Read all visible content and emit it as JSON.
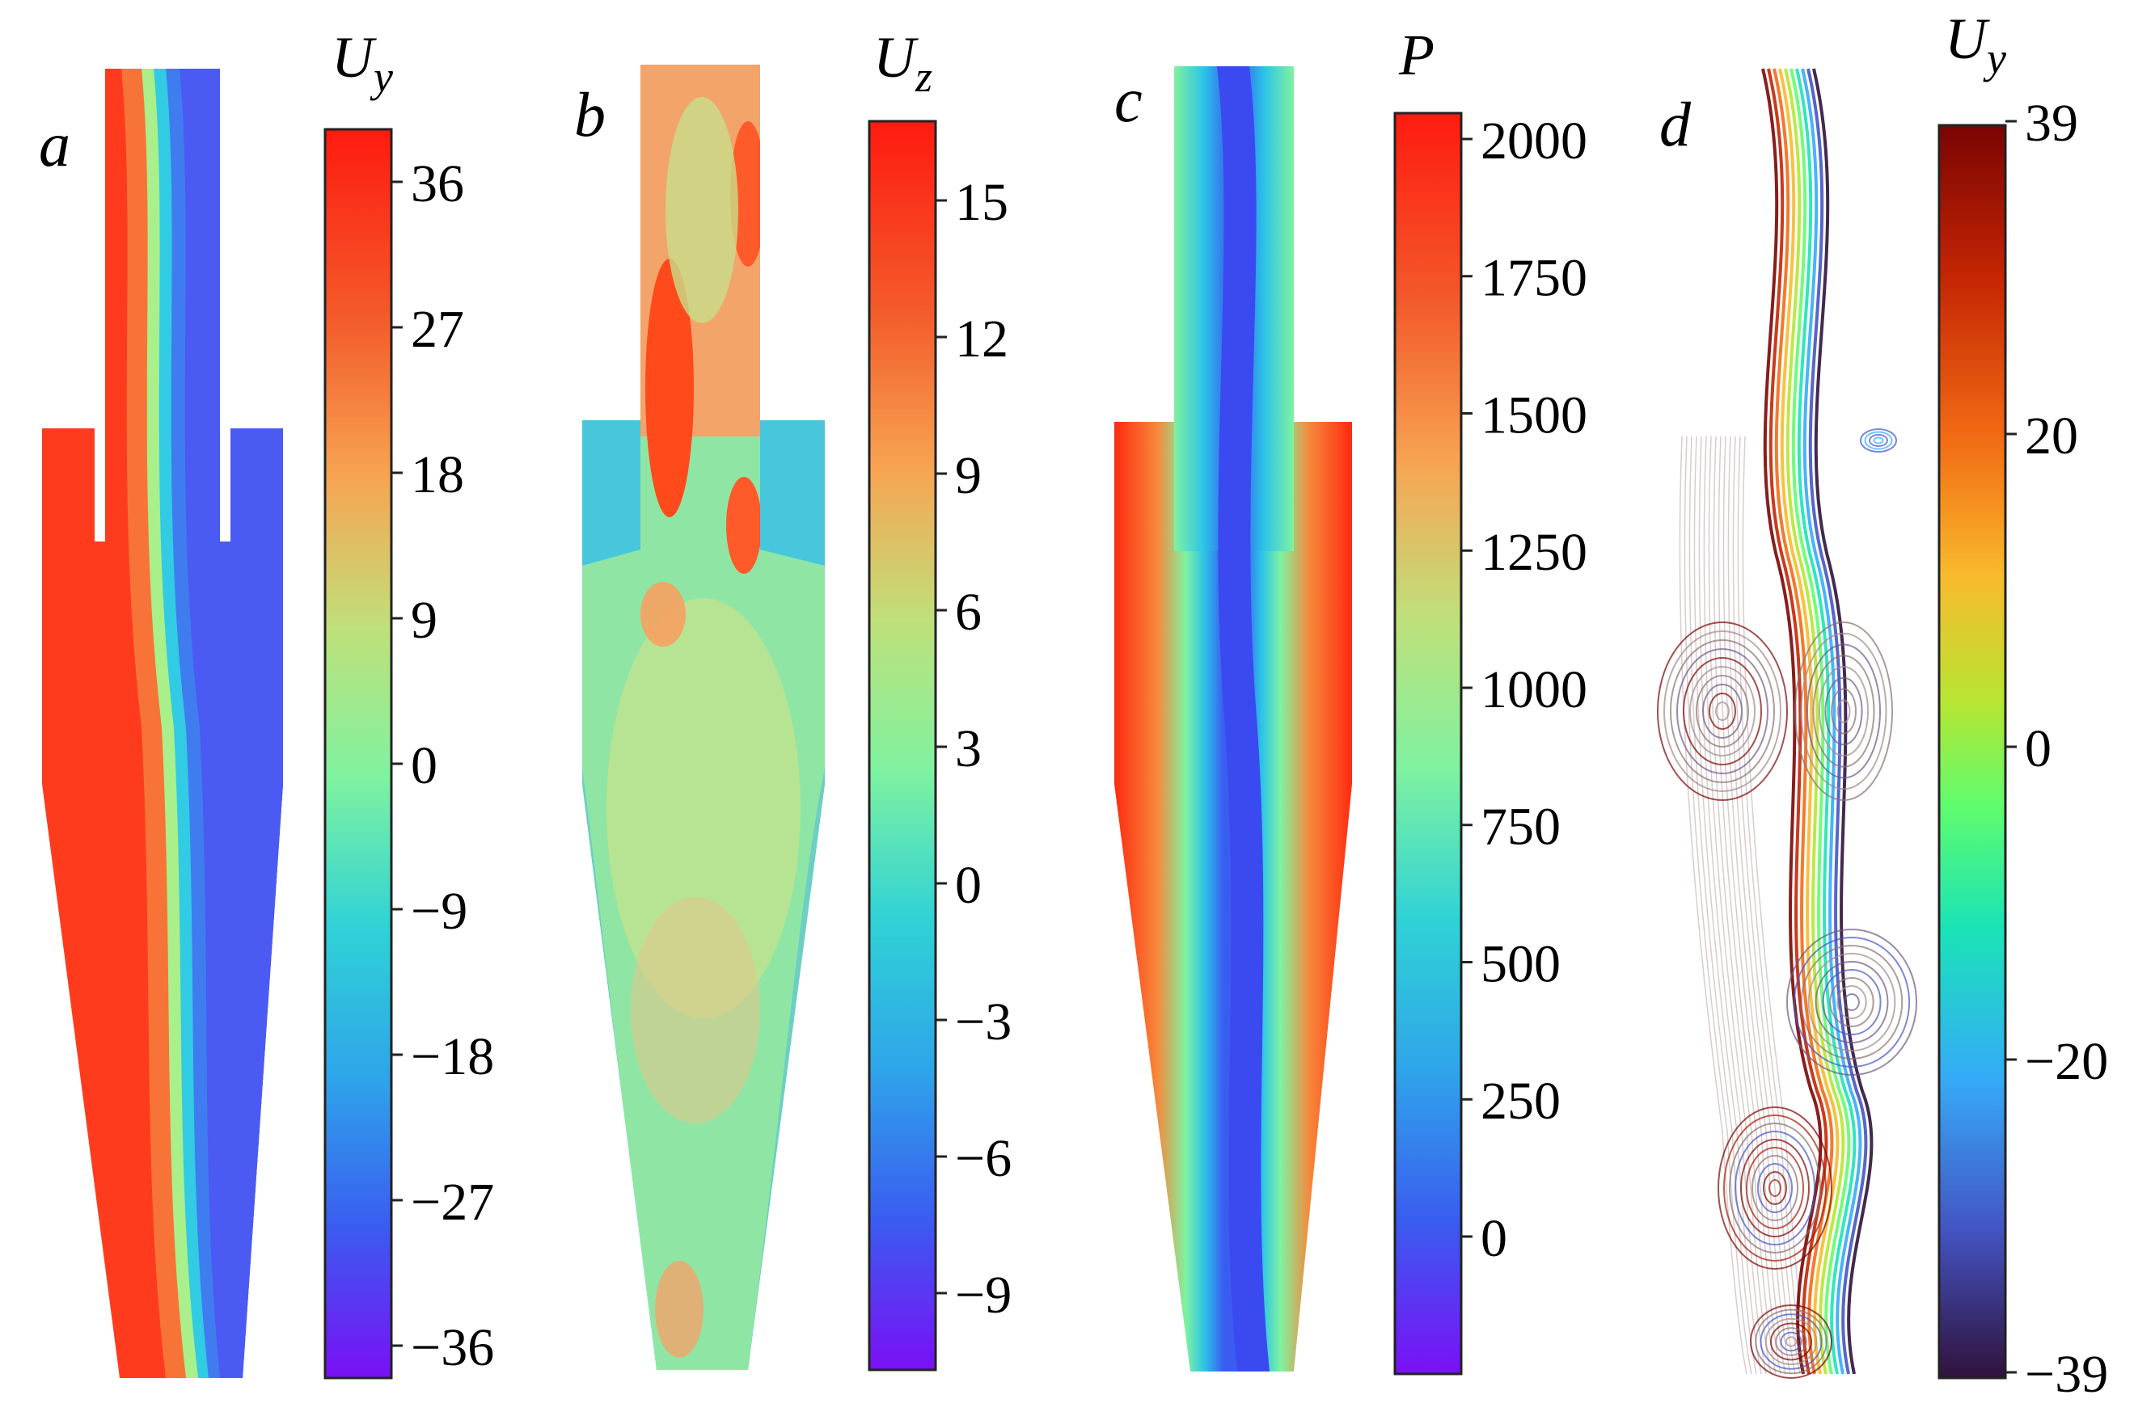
{
  "panels": [
    {
      "letter": "a",
      "var_main": "U",
      "var_sub": "y",
      "ticks": [
        "36",
        "27",
        "18",
        "9",
        "0",
        "−9",
        "−18",
        "−27",
        "−36"
      ],
      "colormap": "rainbow"
    },
    {
      "letter": "b",
      "var_main": "U",
      "var_sub": "z",
      "ticks": [
        "15",
        "12",
        "9",
        "6",
        "3",
        "0",
        "−3",
        "−6",
        "−9"
      ],
      "colormap": "rainbow"
    },
    {
      "letter": "c",
      "var_main": "P",
      "var_sub": "",
      "ticks": [
        "2000",
        "1750",
        "1500",
        "1250",
        "1000",
        "750",
        "500",
        "250",
        "0"
      ],
      "colormap": "rainbow"
    },
    {
      "letter": "d",
      "var_main": "U",
      "var_sub": "y",
      "ticks": [
        "39",
        "20",
        "0",
        "−20",
        "−39"
      ],
      "colormap": "turbo"
    }
  ],
  "colors": {
    "red": "#ff2a10",
    "orange": "#f7a24f",
    "green": "#7ff2a0",
    "cyan": "#2bc4e8",
    "blue": "#3a5cf0",
    "violet": "#7a1cf5",
    "dark_red": "#7a0403",
    "dark_violet": "#30123b"
  }
}
